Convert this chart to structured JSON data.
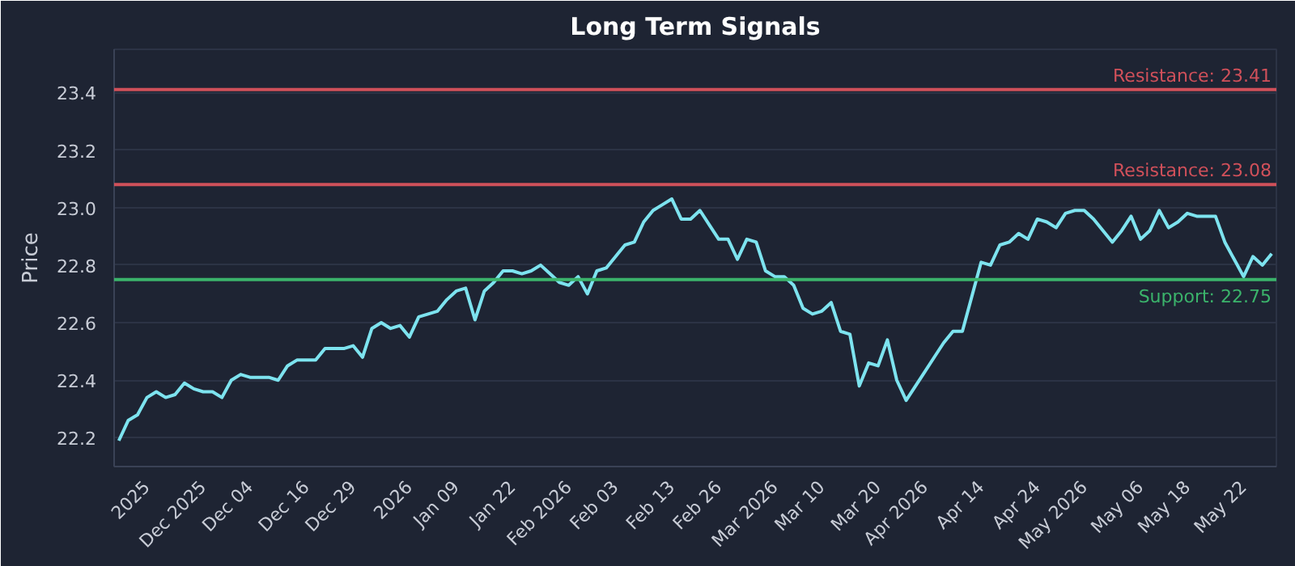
{
  "chart_data": {
    "type": "line",
    "title": "Long Term Signals",
    "ylabel": "Price",
    "categories": [
      null,
      null,
      null,
      "2025",
      null,
      null,
      null,
      null,
      null,
      "Dec 2025",
      null,
      null,
      null,
      null,
      "Dec 04",
      null,
      null,
      null,
      null,
      null,
      "Dec 16",
      null,
      null,
      null,
      null,
      "Dec 29",
      null,
      null,
      null,
      null,
      null,
      "2026",
      null,
      null,
      null,
      null,
      "Jan 09",
      null,
      null,
      null,
      null,
      null,
      "Jan 22",
      null,
      null,
      null,
      null,
      null,
      "Feb 2026",
      null,
      null,
      null,
      null,
      "Feb 03",
      null,
      null,
      null,
      null,
      null,
      "Feb 13",
      null,
      null,
      null,
      null,
      "Feb 26",
      null,
      null,
      null,
      null,
      null,
      "Mar 2026",
      null,
      null,
      null,
      null,
      "Mar 10",
      null,
      null,
      null,
      null,
      null,
      "Mar 20",
      null,
      null,
      null,
      null,
      "Apr 2026",
      null,
      null,
      null,
      null,
      null,
      "Apr 14",
      null,
      null,
      null,
      null,
      null,
      "Apr 24",
      null,
      null,
      null,
      null,
      "May 2026",
      null,
      null,
      null,
      null,
      null,
      "May 06",
      null,
      null,
      null,
      null,
      "May 18",
      null,
      null,
      null,
      null,
      null,
      "May 22",
      null,
      null,
      null
    ],
    "series": [
      {
        "color": "#7de3ef",
        "values": [
          22.19,
          22.26,
          22.28,
          22.34,
          22.36,
          22.34,
          22.35,
          22.39,
          22.37,
          22.36,
          22.36,
          22.34,
          22.4,
          22.42,
          22.41,
          22.41,
          22.41,
          22.4,
          22.45,
          22.47,
          22.47,
          22.47,
          22.51,
          22.51,
          22.51,
          22.52,
          22.48,
          22.58,
          22.6,
          22.58,
          22.59,
          22.55,
          22.62,
          22.63,
          22.64,
          22.68,
          22.71,
          22.72,
          22.61,
          22.71,
          22.74,
          22.78,
          22.78,
          22.77,
          22.78,
          22.8,
          22.77,
          22.74,
          22.73,
          22.76,
          22.7,
          22.78,
          22.79,
          22.83,
          22.87,
          22.88,
          22.95,
          22.99,
          23.01,
          23.03,
          22.96,
          22.96,
          22.99,
          22.94,
          22.89,
          22.89,
          22.82,
          22.89,
          22.88,
          22.78,
          22.76,
          22.76,
          22.73,
          22.65,
          22.63,
          22.64,
          22.67,
          22.57,
          22.56,
          22.38,
          22.46,
          22.45,
          22.54,
          22.4,
          22.33,
          22.38,
          22.43,
          22.48,
          22.53,
          22.57,
          22.57,
          22.69,
          22.81,
          22.8,
          22.87,
          22.88,
          22.91,
          22.89,
          22.96,
          22.95,
          22.93,
          22.98,
          22.99,
          22.99,
          22.96,
          22.92,
          22.88,
          22.92,
          22.97,
          22.89,
          22.92,
          22.99,
          22.93,
          22.95,
          22.98,
          22.97,
          22.97,
          22.97,
          22.88,
          22.82,
          22.76,
          22.83,
          22.8,
          22.84
        ]
      }
    ],
    "ylim": [
      22.1,
      23.55
    ],
    "yticks": [
      22.2,
      22.4,
      22.6,
      22.8,
      {
        "value": 23.0,
        "label": "23.0"
      },
      23.2,
      23.4
    ],
    "grid": "y",
    "ref_lines": [
      {
        "axis": "y",
        "value": 23.41,
        "label": "Resistance: 23.41",
        "color": "#d0505a"
      },
      {
        "axis": "y",
        "value": 23.08,
        "label": "Resistance: 23.08",
        "color": "#d0505a"
      },
      {
        "axis": "y",
        "value": 22.75,
        "label": "Support: 22.75",
        "color": "#3bb36b"
      }
    ]
  }
}
